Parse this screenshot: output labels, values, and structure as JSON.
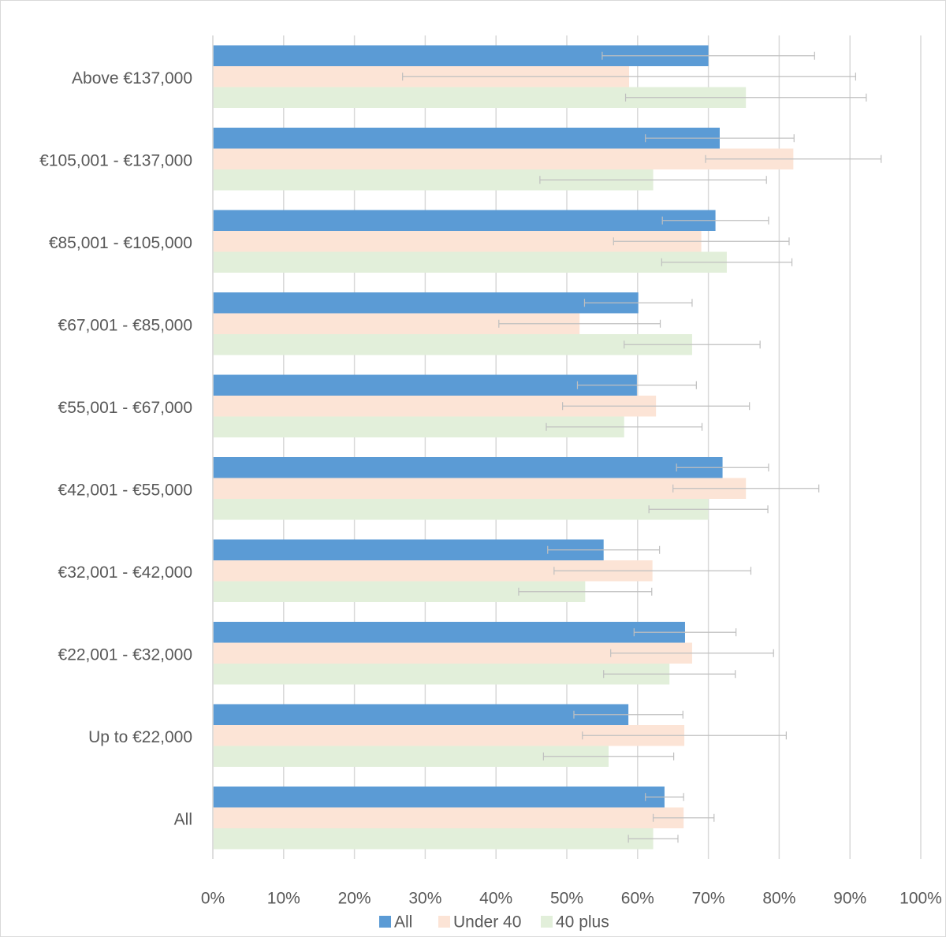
{
  "chart_data": {
    "type": "hbar-error",
    "categories": [
      "Above €137,000",
      "€105,001 - €137,000",
      "€85,001 - €105,000",
      "€67,001 - €85,000",
      "€55,001 - €67,000",
      "€42,001 - €55,000",
      "€32,001 - €42,000",
      "€22,001 - €32,000",
      "Up to €22,000",
      "All"
    ],
    "series": [
      {
        "name": "All",
        "color": "#5b9bd5",
        "values": [
          70,
          71.6,
          71,
          60.1,
          59.9,
          72,
          55.2,
          66.7,
          58.7,
          63.8
        ],
        "errors": [
          15,
          10.5,
          7.5,
          7.6,
          8.4,
          6.5,
          7.9,
          7.2,
          7.7,
          2.7
        ]
      },
      {
        "name": "Under 40",
        "color": "#fce4d6",
        "values": [
          58.8,
          82,
          69,
          51.8,
          62.6,
          75.3,
          62.1,
          67.7,
          66.6,
          66.5
        ],
        "errors": [
          32,
          12.4,
          12.4,
          11.4,
          13.2,
          10.3,
          13.9,
          11.5,
          14.4,
          4.3
        ]
      },
      {
        "name": "40 plus",
        "color": "#e2efda",
        "values": [
          75.3,
          62.2,
          72.6,
          67.7,
          58.1,
          70,
          52.6,
          64.5,
          55.9,
          62.2
        ],
        "errors": [
          17,
          16,
          9.2,
          9.6,
          11,
          8.4,
          9.4,
          9.3,
          9.2,
          3.5
        ]
      }
    ],
    "xlim": [
      0,
      100
    ],
    "xticks": [
      {
        "value": 0,
        "label": "0%"
      },
      {
        "value": 10,
        "label": "10%"
      },
      {
        "value": 20,
        "label": "20%"
      },
      {
        "value": 30,
        "label": "30%"
      },
      {
        "value": 40,
        "label": "40%"
      },
      {
        "value": 50,
        "label": "50%"
      },
      {
        "value": 60,
        "label": "60%"
      },
      {
        "value": 70,
        "label": "70%"
      },
      {
        "value": 80,
        "label": "80%"
      },
      {
        "value": 90,
        "label": "90%"
      },
      {
        "value": 100,
        "label": "100%"
      }
    ],
    "grid": true,
    "legend": "bottom"
  }
}
